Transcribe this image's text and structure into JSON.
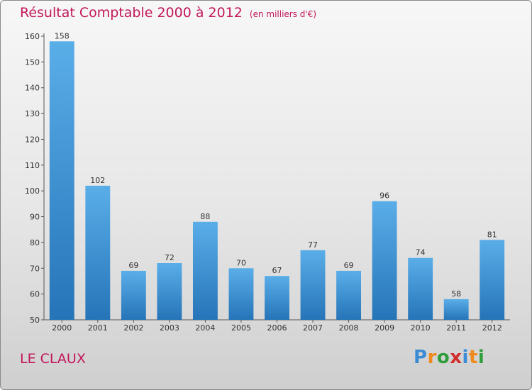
{
  "title": "Résultat Comptable 2000 à 2012",
  "title_unit": "(en milliers d'€)",
  "commune": "LE CLAUX",
  "brand": {
    "letters": [
      "P",
      "r",
      "o",
      "x",
      "i",
      "t",
      "i"
    ]
  },
  "colors": {
    "title": "#c2185b",
    "bar_top": "#5aaee8",
    "bar_bottom": "#2574b8"
  },
  "chart_data": {
    "type": "bar",
    "categories": [
      "2000",
      "2001",
      "2002",
      "2003",
      "2004",
      "2005",
      "2006",
      "2007",
      "2008",
      "2009",
      "2010",
      "2011",
      "2012"
    ],
    "values": [
      158,
      102,
      69,
      72,
      88,
      70,
      67,
      77,
      69,
      96,
      74,
      58,
      81
    ],
    "ylim": [
      50,
      160
    ],
    "yticks": [
      50,
      60,
      70,
      80,
      90,
      100,
      110,
      120,
      130,
      140,
      150,
      160
    ],
    "data_labels": true,
    "grid": false
  }
}
